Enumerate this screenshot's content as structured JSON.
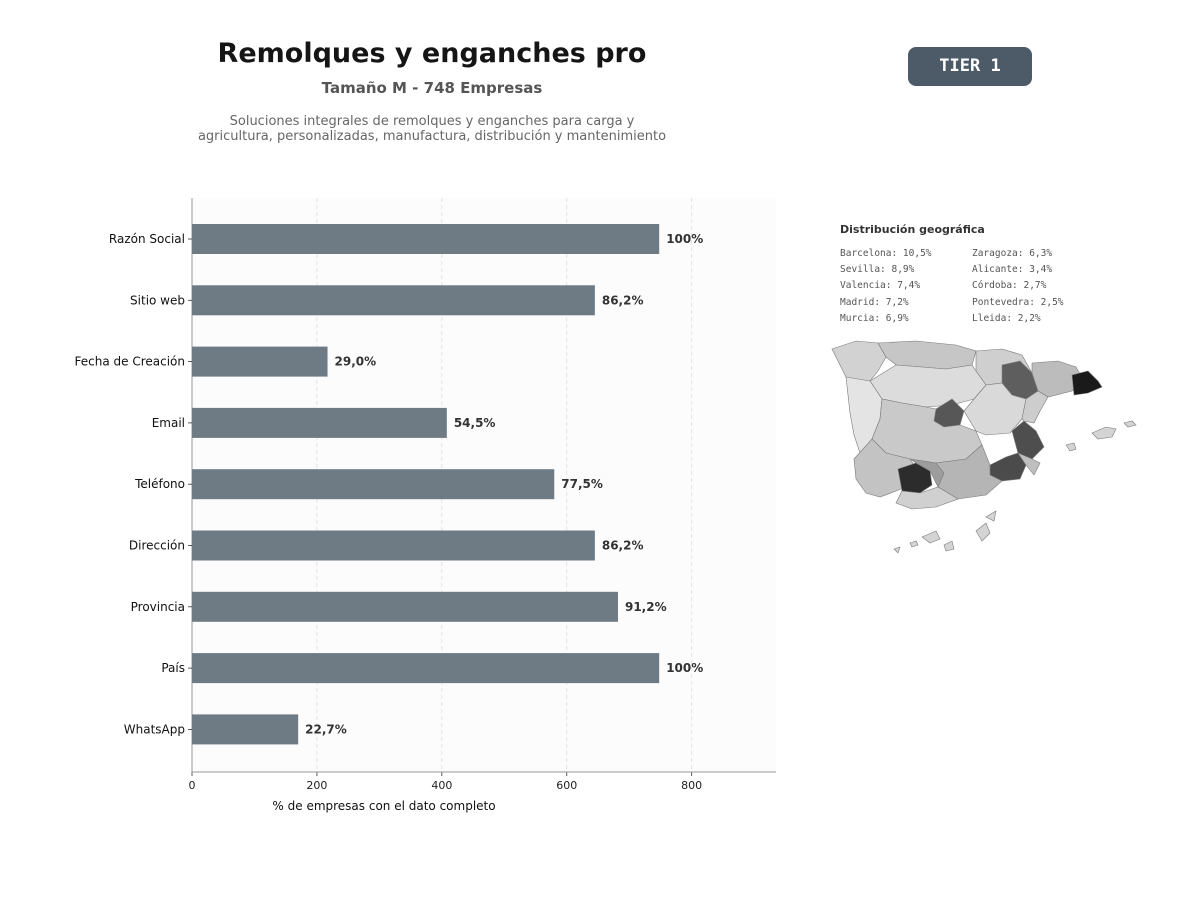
{
  "header": {
    "title": "Remolques y enganches pro",
    "subtitle": "Tamaño M - 748 Empresas",
    "description_line1": "Soluciones integrales de remolques y enganches para carga y",
    "description_line2": "agricultura, personalizadas, manufactura, distribución y mantenimiento"
  },
  "badge": {
    "label": "TIER 1",
    "color": "#4d5b69"
  },
  "chart_data": {
    "type": "bar",
    "orientation": "horizontal",
    "categories": [
      "Razón Social",
      "Sitio web",
      "Fecha de Creación",
      "Email",
      "Teléfono",
      "Dirección",
      "Provincia",
      "País",
      "WhatsApp"
    ],
    "values": [
      748,
      645,
      217,
      408,
      580,
      645,
      682,
      748,
      170
    ],
    "data_labels": [
      "100%",
      "86,2%",
      "29,0%",
      "54,5%",
      "77,5%",
      "86,2%",
      "91,2%",
      "100%",
      "22,7%"
    ],
    "xlabel": "% de empresas con el dato completo",
    "ylabel": "",
    "xlim": [
      0,
      935
    ],
    "xticks": [
      0,
      200,
      400,
      600,
      800
    ],
    "grid": true,
    "bar_color": "#6e7a84"
  },
  "geo": {
    "title": "Distribución geográfica",
    "left_column": [
      "Barcelona: 10,5%",
      "Sevilla: 8,9%",
      "Valencia: 7,4%",
      "Madrid: 7,2%",
      "Murcia: 6,9%"
    ],
    "right_column": [
      "Zaragoza: 6,3%",
      "Alicante: 3,4%",
      "Córdoba: 2,7%",
      "Pontevedra: 2,5%",
      "Lleida: 2,2%"
    ]
  }
}
